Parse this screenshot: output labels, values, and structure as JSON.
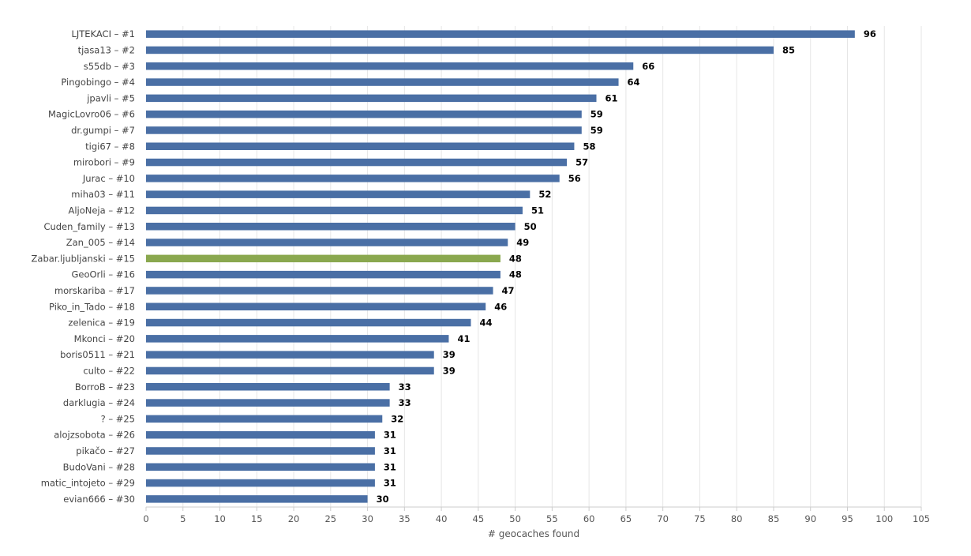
{
  "chart_data": {
    "type": "bar",
    "orientation": "horizontal",
    "xlabel": "# geocaches found",
    "ylabel": "",
    "xlim": [
      0,
      105
    ],
    "xticks": [
      0,
      5,
      10,
      15,
      20,
      25,
      30,
      35,
      40,
      45,
      50,
      55,
      60,
      65,
      70,
      75,
      80,
      85,
      90,
      95,
      100,
      105
    ],
    "grid": true,
    "legend": "none",
    "bar_color": "#4a6fa5",
    "highlight_color": "#8aa84f",
    "highlight_category": "Zabar.ljubljanski – #15",
    "categories": [
      "LJTEKACI – #1",
      "tjasa13 – #2",
      "s55db – #3",
      "Pingobingo – #4",
      "jpavli – #5",
      "MagicLovro06 – #6",
      "dr.gumpi – #7",
      "tigi67 – #8",
      "mirobori – #9",
      "Jurac – #10",
      "miha03 – #11",
      "AljoNeja – #12",
      "Cuden_family – #13",
      "Zan_005 – #14",
      "Zabar.ljubljanski – #15",
      "GeoOrli – #16",
      "morskariba – #17",
      "Piko_in_Tado – #18",
      "zelenica – #19",
      "Mkonci – #20",
      "boris0511 – #21",
      "culto – #22",
      "BorroB – #23",
      "darklugia – #24",
      "? – #25",
      "alojzsobota – #26",
      "pikačo – #27",
      "BudoVani – #28",
      "matic_intojeto – #29",
      "evian666 – #30"
    ],
    "values": [
      96,
      85,
      66,
      64,
      61,
      59,
      59,
      58,
      57,
      56,
      52,
      51,
      50,
      49,
      48,
      48,
      47,
      46,
      44,
      41,
      39,
      39,
      33,
      33,
      32,
      31,
      31,
      31,
      31,
      30
    ]
  }
}
